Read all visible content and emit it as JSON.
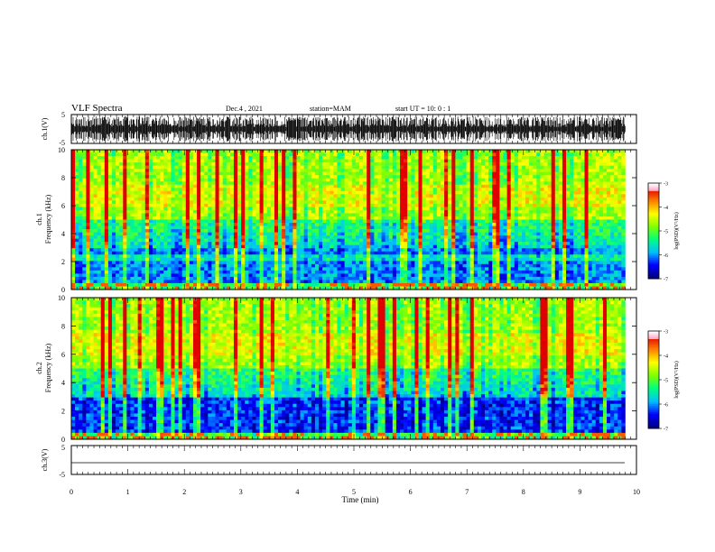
{
  "header": {
    "title": "VLF Spectra",
    "date": "Dec.4 , 2021",
    "station": "station=MAM",
    "start_ut": "start UT =  10: 0 : 1"
  },
  "chart_data": [
    {
      "type": "line",
      "title": "",
      "ylabel": "ch.1(V)",
      "ylim": [
        -5,
        5
      ],
      "yticks": [
        "5",
        "-5"
      ],
      "xlim": [
        0,
        10
      ],
      "description_of_signal": "dense impulsive waveform filling roughly -5..5 V"
    },
    {
      "type": "heatmap",
      "ylabel_line1": "ch.1",
      "ylabel_line2": "Frequency (kHz)",
      "ylim": [
        0,
        10
      ],
      "yticks": [
        "0",
        "2",
        "4",
        "6",
        "8",
        "10"
      ],
      "xlim": [
        0,
        10
      ],
      "colorbar": {
        "label": "log(PSD)(V²/Hz)",
        "range": [
          -7,
          -3
        ],
        "ticks": [
          "-3",
          "-4",
          "-5",
          "-6",
          "-7"
        ]
      }
    },
    {
      "type": "heatmap",
      "ylabel_line1": "ch.2",
      "ylabel_line2": "Frequency (kHz)",
      "ylim": [
        0,
        10
      ],
      "yticks": [
        "0",
        "2",
        "4",
        "6",
        "8",
        "10"
      ],
      "xlim": [
        0,
        10
      ],
      "colorbar": {
        "label": "log(PSD)(V²/Hz)",
        "range": [
          -7,
          -3
        ],
        "ticks": [
          "-3",
          "-4",
          "-5",
          "-6",
          "-7"
        ]
      }
    },
    {
      "type": "line",
      "ylabel": "ch.3(V)",
      "ylim": [
        -5,
        5
      ],
      "yticks": [
        "5",
        "-5"
      ],
      "xlim": [
        0,
        10
      ],
      "series": [
        {
          "values_x": [
            0,
            9.8
          ],
          "values_y": [
            -1.5,
            -1.5
          ]
        }
      ]
    }
  ],
  "xaxis": {
    "label": "Time (min)",
    "ticks": [
      "0",
      "1",
      "2",
      "3",
      "4",
      "5",
      "6",
      "7",
      "8",
      "9",
      "10"
    ]
  },
  "colors": {
    "colormap": [
      "#000080",
      "#0000ff",
      "#00c0ff",
      "#00ff80",
      "#80ff00",
      "#ffff00",
      "#ff8000",
      "#e00000",
      "#ff99c0",
      "#ffffff"
    ]
  }
}
